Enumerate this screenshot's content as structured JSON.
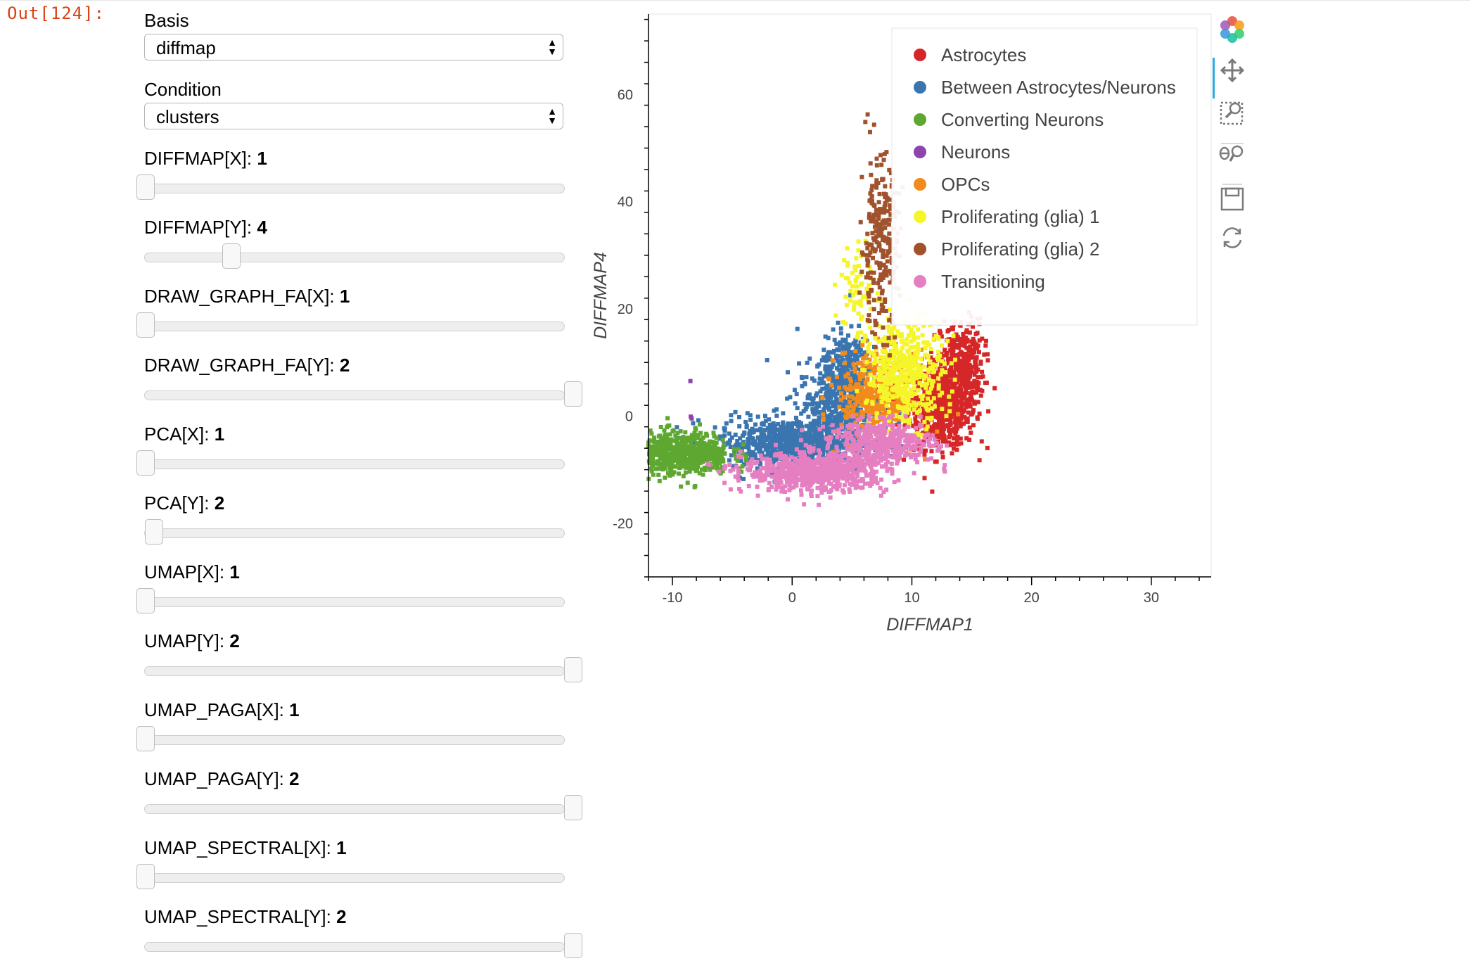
{
  "prompt": "Out[124]:",
  "controls": {
    "basis": {
      "label": "Basis",
      "value": "diffmap"
    },
    "condition": {
      "label": "Condition",
      "value": "clusters"
    },
    "sliders": [
      {
        "name": "DIFFMAP[X]:",
        "value": "1",
        "fraction": 0.0
      },
      {
        "name": "DIFFMAP[Y]:",
        "value": "4",
        "fraction": 0.2
      },
      {
        "name": "DRAW_GRAPH_FA[X]:",
        "value": "1",
        "fraction": 0.0
      },
      {
        "name": "DRAW_GRAPH_FA[Y]:",
        "value": "2",
        "fraction": 1.0
      },
      {
        "name": "PCA[X]:",
        "value": "1",
        "fraction": 0.0
      },
      {
        "name": "PCA[Y]:",
        "value": "2",
        "fraction": 0.02
      },
      {
        "name": "UMAP[X]:",
        "value": "1",
        "fraction": 0.0
      },
      {
        "name": "UMAP[Y]:",
        "value": "2",
        "fraction": 1.0
      },
      {
        "name": "UMAP_PAGA[X]:",
        "value": "1",
        "fraction": 0.0
      },
      {
        "name": "UMAP_PAGA[Y]:",
        "value": "2",
        "fraction": 1.0
      },
      {
        "name": "UMAP_SPECTRAL[X]:",
        "value": "1",
        "fraction": 0.0
      },
      {
        "name": "UMAP_SPECTRAL[Y]:",
        "value": "2",
        "fraction": 1.0
      }
    ]
  },
  "toolbar": {
    "tools": [
      "bokeh-logo-icon",
      "pan-icon",
      "box-zoom-icon",
      "wheel-zoom-icon",
      "save-icon",
      "reset-icon"
    ]
  },
  "chart_data": {
    "type": "scatter",
    "xlabel": "DIFFMAP1",
    "ylabel": "DIFFMAP4",
    "xlim": [
      -12,
      35
    ],
    "ylim": [
      -30,
      75
    ],
    "xticks": [
      "-10",
      "0",
      "10",
      "20",
      "30"
    ],
    "yticks": [
      "-20",
      "0",
      "20",
      "40",
      "60"
    ],
    "legend_position": "top-right",
    "series": [
      {
        "name": "Astrocytes",
        "color": "#d62728",
        "clusters": [
          {
            "cx": 12.5,
            "cy": 2,
            "sx": 1.4,
            "sy": 4,
            "n": 650
          },
          {
            "cx": 14.2,
            "cy": 10,
            "sx": 0.9,
            "sy": 4,
            "n": 300
          }
        ]
      },
      {
        "name": "Between Astrocytes/Neurons",
        "color": "#3a75b0",
        "clusters": [
          {
            "cx": 0,
            "cy": -5,
            "sx": 3.2,
            "sy": 2.3,
            "n": 750
          },
          {
            "cx": 4,
            "cy": 2,
            "sx": 1.8,
            "sy": 4,
            "n": 450
          },
          {
            "cx": 4.5,
            "cy": 10,
            "sx": 1,
            "sy": 3.5,
            "n": 180
          }
        ]
      },
      {
        "name": "Converting Neurons",
        "color": "#5ea832",
        "clusters": [
          {
            "cx": -9.5,
            "cy": -7,
            "sx": 2.2,
            "sy": 2,
            "n": 650
          }
        ]
      },
      {
        "name": "Neurons",
        "color": "#8e44ad",
        "clusters": [
          {
            "cx": -8.5,
            "cy": 6.6,
            "sx": 0.1,
            "sy": 0.1,
            "n": 1
          },
          {
            "cx": -8.6,
            "cy": 0,
            "sx": 0.3,
            "sy": 0.3,
            "n": 2
          }
        ]
      },
      {
        "name": "OPCs",
        "color": "#f28a1c",
        "clusters": [
          {
            "cx": 7,
            "cy": 4,
            "sx": 1.6,
            "sy": 4,
            "n": 420
          }
        ]
      },
      {
        "name": "Proliferating (glia) 1",
        "color": "#f5f52a",
        "clusters": [
          {
            "cx": 9.5,
            "cy": 8,
            "sx": 1.6,
            "sy": 5,
            "n": 480
          },
          {
            "cx": 5.5,
            "cy": 23,
            "sx": 0.8,
            "sy": 5,
            "n": 70
          }
        ]
      },
      {
        "name": "Proliferating (glia) 2",
        "color": "#a0522d",
        "clusters": [
          {
            "cx": 7.3,
            "cy": 32,
            "sx": 0.8,
            "sy": 8,
            "n": 260
          }
        ]
      },
      {
        "name": "Transitioning",
        "color": "#e57fc1",
        "clusters": [
          {
            "cx": 2,
            "cy": -10.5,
            "sx": 3,
            "sy": 1.8,
            "n": 700
          },
          {
            "cx": 7.5,
            "cy": -5,
            "sx": 2.2,
            "sy": 2,
            "n": 400
          }
        ]
      }
    ]
  }
}
